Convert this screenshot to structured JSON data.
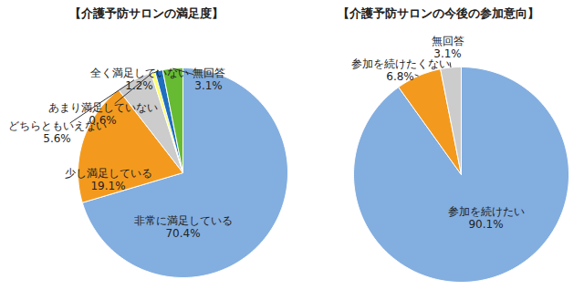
{
  "chart_data": [
    {
      "type": "pie",
      "title": "【介護予防サロンの満足度】",
      "categories": [
        "非常に満足している",
        "少し満足している",
        "どちらともいえない",
        "あまり満足していない",
        "全く満足していない",
        "無回答"
      ],
      "values": [
        70.4,
        19.1,
        5.6,
        0.6,
        1.2,
        3.1
      ],
      "value_labels": [
        "70.4%",
        "19.1%",
        "5.6%",
        "0.6%",
        "1.2%",
        "3.1%"
      ],
      "colors": [
        "#83aee0",
        "#f39a1e",
        "#cccccc",
        "#ffff66",
        "#1f6fbf",
        "#66bb33"
      ],
      "data_labels": true
    },
    {
      "type": "pie",
      "title": "【介護予防サロンの今後の参加意向】",
      "categories": [
        "参加を続けたい",
        "参加を続けたくない",
        "無回答"
      ],
      "values": [
        90.1,
        6.8,
        3.1
      ],
      "value_labels": [
        "90.1%",
        "6.8%",
        "3.1%"
      ],
      "colors": [
        "#83aee0",
        "#f39a1e",
        "#cccccc"
      ],
      "data_labels": true
    }
  ]
}
